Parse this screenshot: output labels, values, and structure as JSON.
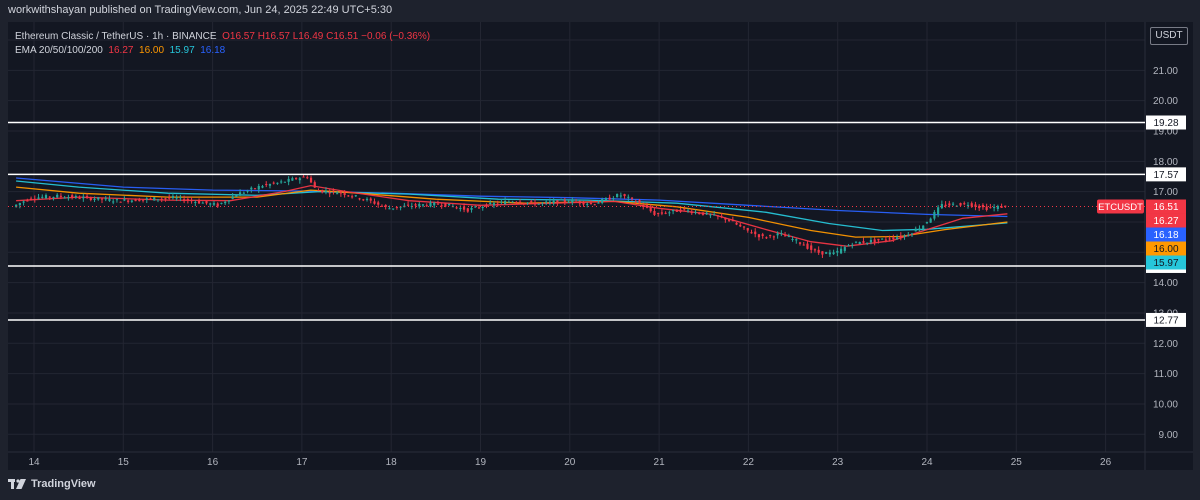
{
  "header": {
    "publisher_line": "workwithshayan published on TradingView.com, Jun 24, 2025 22:49 UTC+5:30"
  },
  "legend": {
    "symbol": "Ethereum Classic / TetherUS · 1h · BINANCE",
    "ohlc": "O16.57 H16.57 L16.49 C16.51 −0.06 (−0.36%)",
    "ema_label": "EMA 20/50/100/200",
    "ema20": "16.27",
    "ema50": "16.00",
    "ema100": "15.97",
    "ema200": "16.18"
  },
  "currency_label": "USDT",
  "branding": "TradingView",
  "colors": {
    "background": "#131722",
    "up_candle": "#26a69a",
    "down_candle": "#f23645",
    "ema20": "#f23645",
    "ema50": "#ff9800",
    "ema100": "#26c6da",
    "ema200": "#2962ff",
    "horizontal_lines": "#ffffff"
  },
  "chart_data": {
    "type": "candlestick",
    "symbol": "ETCUSDT",
    "interval": "1h",
    "x_ticks": [
      "14",
      "15",
      "16",
      "17",
      "18",
      "19",
      "20",
      "21",
      "22",
      "23",
      "24",
      "25",
      "26"
    ],
    "y_ticks": [
      "22.00",
      "21.00",
      "20.00",
      "19.00",
      "18.00",
      "17.00",
      "16.00",
      "15.00",
      "14.00",
      "13.00",
      "12.00",
      "11.00",
      "10.00",
      "9.00"
    ],
    "y_range": [
      8.9,
      22.6
    ],
    "horizontal_levels": [
      {
        "label": "19.28",
        "value": 19.28
      },
      {
        "label": "17.57",
        "value": 17.57
      },
      {
        "label": "14.55",
        "value": 14.55
      },
      {
        "label": "12.77",
        "value": 12.77
      }
    ],
    "price_tags": [
      {
        "label": "16.51",
        "value": 16.51,
        "color": "#f23645"
      },
      {
        "label": "16.27",
        "value": 16.27,
        "color": "#f23645"
      },
      {
        "label": "16.18",
        "value": 16.18,
        "color": "#2962ff"
      },
      {
        "label": "16.00",
        "value": 16.0,
        "color": "#ff9800"
      },
      {
        "label": "15.97",
        "value": 15.97,
        "color": "#26c6da"
      }
    ],
    "symbol_tag": "ETCUSDT",
    "last_price": 16.51,
    "x_range": [
      13.8,
      26.4
    ],
    "price_path": [
      [
        13.8,
        16.5
      ],
      [
        14.0,
        16.8
      ],
      [
        14.3,
        16.85
      ],
      [
        14.6,
        16.8
      ],
      [
        15.0,
        16.7
      ],
      [
        15.3,
        16.75
      ],
      [
        15.6,
        16.8
      ],
      [
        15.9,
        16.65
      ],
      [
        16.1,
        16.55
      ],
      [
        16.3,
        16.9
      ],
      [
        16.6,
        17.2
      ],
      [
        16.8,
        17.3
      ],
      [
        17.0,
        17.45
      ],
      [
        17.1,
        17.5
      ],
      [
        17.2,
        17.05
      ],
      [
        17.5,
        16.95
      ],
      [
        17.8,
        16.7
      ],
      [
        18.0,
        16.45
      ],
      [
        18.3,
        16.55
      ],
      [
        18.6,
        16.6
      ],
      [
        18.9,
        16.4
      ],
      [
        19.1,
        16.55
      ],
      [
        19.4,
        16.7
      ],
      [
        19.7,
        16.6
      ],
      [
        20.0,
        16.7
      ],
      [
        20.3,
        16.6
      ],
      [
        20.6,
        16.9
      ],
      [
        20.8,
        16.65
      ],
      [
        21.0,
        16.25
      ],
      [
        21.3,
        16.4
      ],
      [
        21.5,
        16.3
      ],
      [
        21.8,
        16.1
      ],
      [
        22.0,
        15.75
      ],
      [
        22.2,
        15.5
      ],
      [
        22.4,
        15.6
      ],
      [
        22.6,
        15.35
      ],
      [
        22.8,
        15.0
      ],
      [
        23.0,
        14.95
      ],
      [
        23.2,
        15.3
      ],
      [
        23.5,
        15.4
      ],
      [
        23.8,
        15.55
      ],
      [
        24.0,
        15.9
      ],
      [
        24.1,
        16.2
      ],
      [
        24.2,
        16.55
      ],
      [
        24.5,
        16.6
      ],
      [
        24.7,
        16.45
      ],
      [
        24.9,
        16.51
      ]
    ],
    "ema20_path": [
      [
        13.8,
        16.7
      ],
      [
        14.5,
        16.82
      ],
      [
        15.5,
        16.72
      ],
      [
        16.2,
        16.7
      ],
      [
        16.8,
        17.0
      ],
      [
        17.1,
        17.2
      ],
      [
        17.5,
        17.0
      ],
      [
        18.2,
        16.7
      ],
      [
        19.0,
        16.55
      ],
      [
        19.8,
        16.62
      ],
      [
        20.5,
        16.68
      ],
      [
        21.0,
        16.45
      ],
      [
        21.6,
        16.25
      ],
      [
        22.2,
        15.75
      ],
      [
        22.7,
        15.35
      ],
      [
        23.1,
        15.2
      ],
      [
        23.6,
        15.38
      ],
      [
        24.0,
        15.75
      ],
      [
        24.4,
        16.12
      ],
      [
        24.9,
        16.27
      ]
    ],
    "ema50_path": [
      [
        13.8,
        17.15
      ],
      [
        14.5,
        16.95
      ],
      [
        15.5,
        16.82
      ],
      [
        16.5,
        16.82
      ],
      [
        17.1,
        17.05
      ],
      [
        17.5,
        16.98
      ],
      [
        18.5,
        16.75
      ],
      [
        19.5,
        16.62
      ],
      [
        20.5,
        16.68
      ],
      [
        21.2,
        16.5
      ],
      [
        22.0,
        16.15
      ],
      [
        22.7,
        15.72
      ],
      [
        23.2,
        15.5
      ],
      [
        23.7,
        15.52
      ],
      [
        24.2,
        15.75
      ],
      [
        24.9,
        16.0
      ]
    ],
    "ema100_path": [
      [
        13.8,
        17.35
      ],
      [
        14.5,
        17.15
      ],
      [
        15.5,
        16.95
      ],
      [
        16.5,
        16.88
      ],
      [
        17.2,
        17.0
      ],
      [
        18.2,
        16.92
      ],
      [
        19.2,
        16.75
      ],
      [
        20.2,
        16.72
      ],
      [
        21.2,
        16.62
      ],
      [
        22.2,
        16.32
      ],
      [
        22.9,
        15.95
      ],
      [
        23.5,
        15.72
      ],
      [
        24.0,
        15.76
      ],
      [
        24.9,
        15.97
      ]
    ],
    "ema200_path": [
      [
        13.8,
        17.45
      ],
      [
        15.0,
        17.15
      ],
      [
        16.0,
        17.05
      ],
      [
        17.0,
        17.02
      ],
      [
        18.0,
        16.95
      ],
      [
        19.0,
        16.85
      ],
      [
        20.0,
        16.8
      ],
      [
        21.0,
        16.72
      ],
      [
        22.0,
        16.55
      ],
      [
        23.0,
        16.38
      ],
      [
        24.0,
        16.25
      ],
      [
        24.9,
        16.18
      ]
    ]
  }
}
